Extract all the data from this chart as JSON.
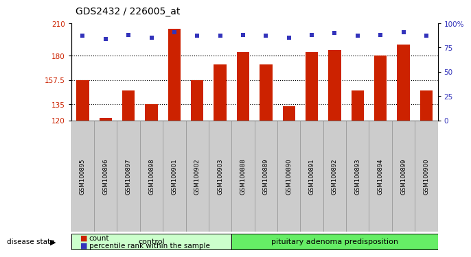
{
  "title": "GDS2432 / 226005_at",
  "categories": [
    "GSM100895",
    "GSM100896",
    "GSM100897",
    "GSM100898",
    "GSM100901",
    "GSM100902",
    "GSM100903",
    "GSM100888",
    "GSM100889",
    "GSM100890",
    "GSM100891",
    "GSM100892",
    "GSM100893",
    "GSM100894",
    "GSM100899",
    "GSM100900"
  ],
  "bar_values": [
    157.5,
    122,
    148,
    135,
    205,
    157.5,
    172,
    183,
    172,
    133,
    183,
    185,
    148,
    180,
    190,
    148
  ],
  "percentile_values": [
    87,
    84,
    88,
    85,
    91,
    87,
    87,
    88,
    87,
    85,
    88,
    90,
    87,
    88,
    91,
    87
  ],
  "bar_color": "#CC2200",
  "percentile_color": "#3333BB",
  "ylim_left": [
    120,
    210
  ],
  "ylim_right": [
    0,
    100
  ],
  "yticks_left": [
    120,
    135,
    157.5,
    180,
    210
  ],
  "ytick_labels_left": [
    "120",
    "135",
    "157.5",
    "180",
    "210"
  ],
  "yticks_right": [
    0,
    25,
    50,
    75,
    100
  ],
  "ytick_labels_right": [
    "0",
    "25",
    "50",
    "75",
    "100%"
  ],
  "hlines": [
    135,
    157.5,
    180
  ],
  "group1_label": "control",
  "group2_label": "pituitary adenoma predisposition",
  "group1_count": 7,
  "group2_count": 9,
  "disease_state_label": "disease state",
  "legend_count_label": "count",
  "legend_percentile_label": "percentile rank within the sample",
  "bg_color": "#FFFFFF",
  "tick_label_color_left": "#CC2200",
  "tick_label_color_right": "#3333BB",
  "xtick_bg": "#CCCCCC",
  "group1_color": "#CCFFCC",
  "group2_color": "#66EE66",
  "bar_width": 0.55
}
